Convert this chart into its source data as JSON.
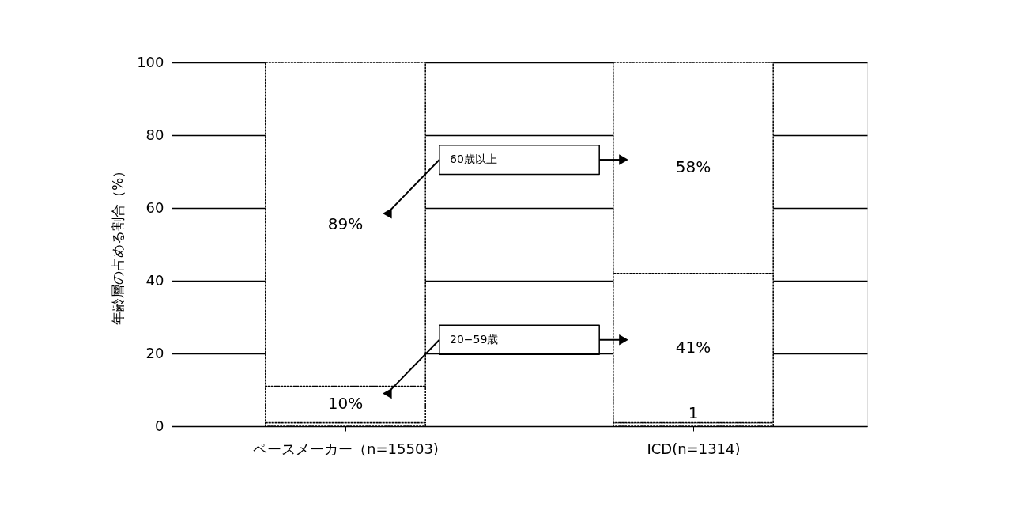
{
  "chart_data": {
    "type": "bar",
    "stacked": true,
    "categories": [
      "ペースメーカー（n=15503)",
      "ICD(n=1314)"
    ],
    "ylabel": "年齢層の占める割合（%）",
    "series": [
      {
        "color": "#ffffff",
        "values": [
          1,
          1
        ],
        "value_labels": [
          null,
          "1"
        ]
      },
      {
        "name": "20−59歳",
        "color": "#ffffff",
        "values": [
          10,
          41
        ],
        "value_labels": [
          "10%",
          "41%"
        ]
      },
      {
        "name": "60歳以上",
        "color": "#ffffff",
        "values": [
          89,
          58
        ],
        "value_labels": [
          "89%",
          "58%"
        ]
      }
    ],
    "ylim": [
      0,
      100
    ],
    "yticks": [
      0,
      20,
      40,
      60,
      80,
      100
    ],
    "grid": "y"
  }
}
